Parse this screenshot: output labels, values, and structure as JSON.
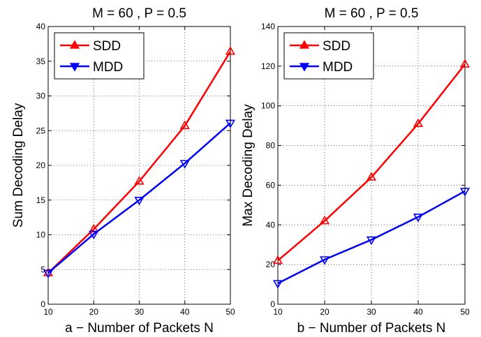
{
  "chart_data": [
    {
      "type": "line",
      "title": "M = 60 , P = 0.5",
      "xlabel": "a − Number of Packets N",
      "ylabel": "Sum Decoding Delay",
      "xlim": [
        10,
        50
      ],
      "ylim": [
        0,
        40
      ],
      "xticks": [
        10,
        20,
        30,
        40,
        50
      ],
      "yticks": [
        0,
        5,
        10,
        15,
        20,
        25,
        30,
        35,
        40
      ],
      "grid": true,
      "legend_position": "top-left",
      "x": [
        10,
        20,
        30,
        40,
        50
      ],
      "series": [
        {
          "name": "SDD",
          "color": "#ff0000",
          "marker": "triangle-up",
          "values": [
            4.5,
            10.8,
            17.7,
            25.7,
            36.4
          ]
        },
        {
          "name": "MDD",
          "color": "#0000ff",
          "marker": "triangle-down",
          "values": [
            4.5,
            10.1,
            15.0,
            20.3,
            26.1
          ]
        }
      ]
    },
    {
      "type": "line",
      "title": "M = 60 , P = 0.5",
      "xlabel": "b − Number of Packets N",
      "ylabel": "Max Decoding Delay",
      "xlim": [
        10,
        50
      ],
      "ylim": [
        0,
        140
      ],
      "xticks": [
        10,
        20,
        30,
        40,
        50
      ],
      "yticks": [
        0,
        20,
        40,
        60,
        80,
        100,
        120,
        140
      ],
      "grid": true,
      "legend_position": "top-left",
      "x": [
        10,
        20,
        30,
        40,
        50
      ],
      "series": [
        {
          "name": "SDD",
          "color": "#ff0000",
          "marker": "triangle-up",
          "values": [
            22,
            42,
            64,
            91,
            121
          ]
        },
        {
          "name": "MDD",
          "color": "#0000ff",
          "marker": "triangle-down",
          "values": [
            10.5,
            22.5,
            32.5,
            44,
            57
          ]
        }
      ]
    }
  ]
}
